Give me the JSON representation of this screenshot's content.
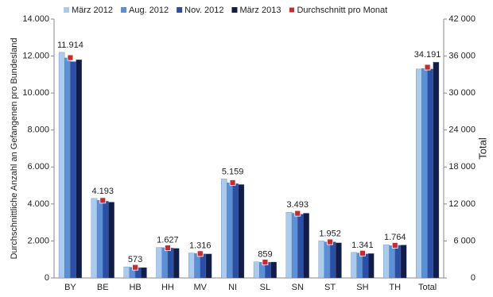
{
  "chart_data": [
    {
      "type": "bar",
      "y_label": "Durchschnittliche Anzahl an Gefangenen pro Bundesland",
      "categories": [
        "BY",
        "BE",
        "HB",
        "HH",
        "MV",
        "NI",
        "SL",
        "SN",
        "ST",
        "SH",
        "TH"
      ],
      "series": [
        {
          "name": "März 2012",
          "color": "#a9cbee",
          "values": [
            12200,
            4300,
            600,
            1650,
            1350,
            5350,
            870,
            3550,
            2000,
            1380,
            1800
          ]
        },
        {
          "name": "Aug. 2012",
          "color": "#5b8fd6",
          "values": [
            11900,
            4200,
            580,
            1640,
            1320,
            5150,
            850,
            3500,
            1950,
            1350,
            1750
          ]
        },
        {
          "name": "Nov. 2012",
          "color": "#2b4fa6",
          "values": [
            11700,
            4150,
            560,
            1620,
            1300,
            5100,
            850,
            3450,
            1950,
            1300,
            1770
          ]
        },
        {
          "name": "März 2013",
          "color": "#111d48",
          "values": [
            11800,
            4100,
            560,
            1600,
            1300,
            5050,
            860,
            3500,
            1900,
            1320,
            1780
          ]
        },
        {
          "name": "Durchschnitt pro Monat",
          "color": "#cc2a2a",
          "marker": "square",
          "values": [
            11914,
            4193,
            573,
            1627,
            1316,
            5159,
            859,
            3493,
            1952,
            1341,
            1764
          ],
          "value_labels": [
            "11.914",
            "4.193",
            "573",
            "1.627",
            "1.316",
            "5.159",
            "859",
            "3.493",
            "1.952",
            "1.341",
            "1.764"
          ]
        }
      ],
      "ylim": [
        0,
        14000
      ],
      "yticks": [
        0,
        {
          "value": 2000,
          "label": "2.000"
        },
        {
          "value": 4000,
          "label": "4.000"
        },
        {
          "value": 6000,
          "label": "6.000"
        },
        {
          "value": 8000,
          "label": "8.000"
        },
        {
          "value": 10000,
          "label": "10.000"
        },
        {
          "value": 12000,
          "label": "12.000"
        },
        {
          "value": 14000,
          "label": "14.000"
        }
      ]
    },
    {
      "type": "bar",
      "y2_label": "Total",
      "categories": [
        "Total"
      ],
      "series": [
        {
          "color": "#a9cbee",
          "axis": "y2",
          "values": [
            33900
          ]
        },
        {
          "color": "#5b8fd6",
          "axis": "y2",
          "values": [
            34000
          ]
        },
        {
          "color": "#2b4fa6",
          "axis": "y2",
          "values": [
            33900
          ]
        },
        {
          "color": "#111d48",
          "axis": "y2",
          "values": [
            35000
          ]
        },
        {
          "color": "#cc2a2a",
          "axis": "y2",
          "marker": "square",
          "values": [
            34191
          ],
          "value_labels": [
            "34.191"
          ]
        }
      ],
      "y2lim": [
        0,
        42000
      ],
      "y2ticks": [
        0,
        {
          "value": 6000,
          "label": "6 000"
        },
        {
          "value": 12000,
          "label": "12 000"
        },
        {
          "value": 18000,
          "label": "18 000"
        },
        {
          "value": 24000,
          "label": "24 000"
        },
        {
          "value": 30000,
          "label": "30 000"
        },
        {
          "value": 36000,
          "label": "36 000"
        },
        {
          "value": 42000,
          "label": "42 000"
        }
      ]
    }
  ]
}
